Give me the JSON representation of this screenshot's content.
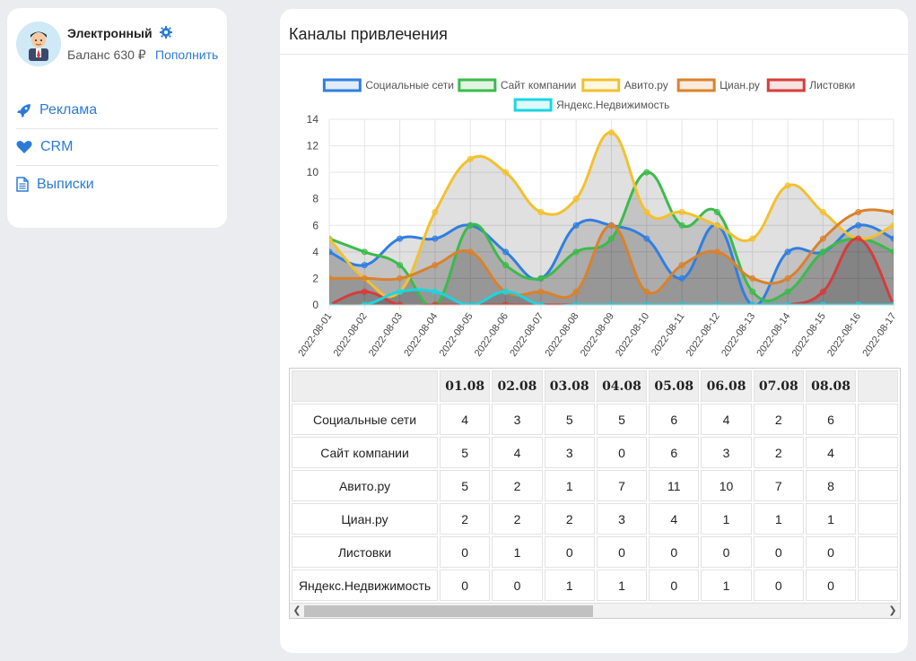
{
  "account": {
    "name": "Электронный",
    "balance": "Баланс 630 ₽",
    "topup_label": "Пополнить"
  },
  "nav": [
    {
      "label": "Реклама",
      "icon": "rocket-icon"
    },
    {
      "label": "CRM",
      "icon": "heart-icon"
    },
    {
      "label": "Выписки",
      "icon": "document-icon"
    }
  ],
  "main": {
    "title": "Каналы привлечения"
  },
  "chart_data": {
    "type": "line",
    "x": [
      "2022-08-01",
      "2022-08-02",
      "2022-08-03",
      "2022-08-04",
      "2022-08-05",
      "2022-08-06",
      "2022-08-07",
      "2022-08-08",
      "2022-08-09",
      "2022-08-10",
      "2022-08-11",
      "2022-08-12",
      "2022-08-13",
      "2022-08-14",
      "2022-08-15",
      "2022-08-16",
      "2022-08-17"
    ],
    "ylim": [
      0,
      14
    ],
    "yticks": [
      "0",
      "2",
      "4",
      "6",
      "8",
      "10",
      "12",
      "14"
    ],
    "grid": true,
    "legend_position": "top",
    "series": [
      {
        "name": "Социальные сети",
        "color": "#2f7fe0",
        "values": [
          4,
          3,
          5,
          5,
          6,
          4,
          2,
          6,
          6,
          5,
          2,
          6,
          0,
          4,
          4,
          6,
          5
        ]
      },
      {
        "name": "Сайт компании",
        "color": "#3bbb4a",
        "values": [
          5,
          4,
          3,
          0,
          6,
          3,
          2,
          4,
          5,
          10,
          6,
          7,
          1,
          1,
          4,
          5,
          4
        ]
      },
      {
        "name": "Авито.ру",
        "color": "#f2c12e",
        "values": [
          5,
          2,
          1,
          7,
          11,
          10,
          7,
          8,
          13,
          7,
          7,
          6,
          5,
          9,
          7,
          5,
          6
        ]
      },
      {
        "name": "Циан.ру",
        "color": "#d9822b",
        "values": [
          2,
          2,
          2,
          3,
          4,
          1,
          1,
          1,
          6,
          1,
          3,
          4,
          2,
          2,
          5,
          7,
          7
        ]
      },
      {
        "name": "Листовки",
        "color": "#d83b3b",
        "values": [
          0,
          1,
          0,
          0,
          0,
          0,
          0,
          0,
          0,
          0,
          0,
          0,
          0,
          0,
          1,
          5,
          0
        ]
      },
      {
        "name": "Яндекс.Недвижимость",
        "color": "#1ad6e0",
        "values": [
          0,
          0,
          1,
          1,
          0,
          1,
          0,
          0,
          0,
          0,
          0,
          0,
          0,
          0,
          0,
          0,
          0
        ]
      }
    ]
  },
  "table": {
    "columns": [
      "01.08",
      "02.08",
      "03.08",
      "04.08",
      "05.08",
      "06.08",
      "07.08",
      "08.08"
    ],
    "rows": [
      {
        "label": "Социальные сети",
        "values": [
          "4",
          "3",
          "5",
          "5",
          "6",
          "4",
          "2",
          "6"
        ]
      },
      {
        "label": "Сайт компании",
        "values": [
          "5",
          "4",
          "3",
          "0",
          "6",
          "3",
          "2",
          "4"
        ]
      },
      {
        "label": "Авито.ру",
        "values": [
          "5",
          "2",
          "1",
          "7",
          "11",
          "10",
          "7",
          "8"
        ]
      },
      {
        "label": "Циан.ру",
        "values": [
          "2",
          "2",
          "2",
          "3",
          "4",
          "1",
          "1",
          "1"
        ]
      },
      {
        "label": "Листовки",
        "values": [
          "0",
          "1",
          "0",
          "0",
          "0",
          "0",
          "0",
          "0"
        ]
      },
      {
        "label": "Яндекс.Недвижимость",
        "values": [
          "0",
          "0",
          "1",
          "1",
          "0",
          "1",
          "0",
          "0"
        ]
      }
    ]
  }
}
